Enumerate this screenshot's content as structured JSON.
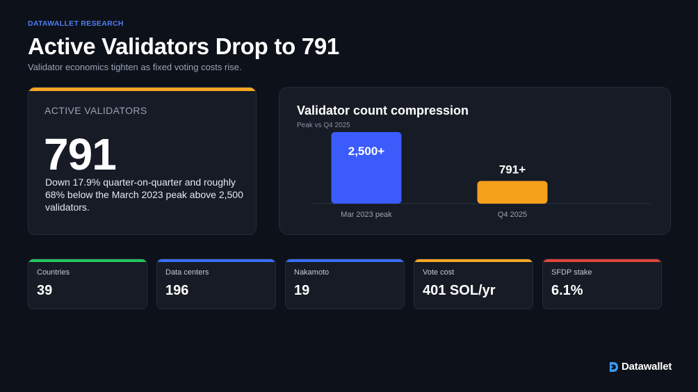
{
  "header": {
    "eyebrow": "DATAWALLET RESEARCH",
    "title": "Active Validators Drop to 791",
    "subtitle": "Validator economics tighten as fixed voting costs rise."
  },
  "hero": {
    "label": "ACTIVE VALIDATORS",
    "value": "791",
    "description": "Down 17.9% quarter-on-quarter and roughly 68% below the March 2023 peak above 2,500 validators.",
    "accent_color": "#f5a623"
  },
  "chart_data": {
    "type": "bar",
    "title": "Validator count compression",
    "subtitle": "Peak vs Q4 2025",
    "categories": [
      "Mar 2023 peak",
      "Q4 2025"
    ],
    "values": [
      2500,
      791
    ],
    "data_labels": [
      "2,500+",
      "791+"
    ],
    "colors": [
      "#3b5bfb",
      "#f5a01a"
    ],
    "xlabel": "",
    "ylabel": "",
    "ylim": [
      0,
      2500
    ],
    "grid": false,
    "legend": "none"
  },
  "stats": [
    {
      "label": "Countries",
      "value": "39",
      "color": "#22c55e"
    },
    {
      "label": "Data centers",
      "value": "196",
      "color": "#3b6cf6"
    },
    {
      "label": "Nakamoto",
      "value": "19",
      "color": "#3b6cf6"
    },
    {
      "label": "Vote cost",
      "value": "401 SOL/yr",
      "color": "#f5a623"
    },
    {
      "label": "SFDP stake",
      "value": "6.1%",
      "color": "#e0443e"
    }
  ],
  "brand": {
    "name": "Datawallet",
    "icon": "datawallet-logo-icon",
    "color": "#3b9cf6"
  }
}
